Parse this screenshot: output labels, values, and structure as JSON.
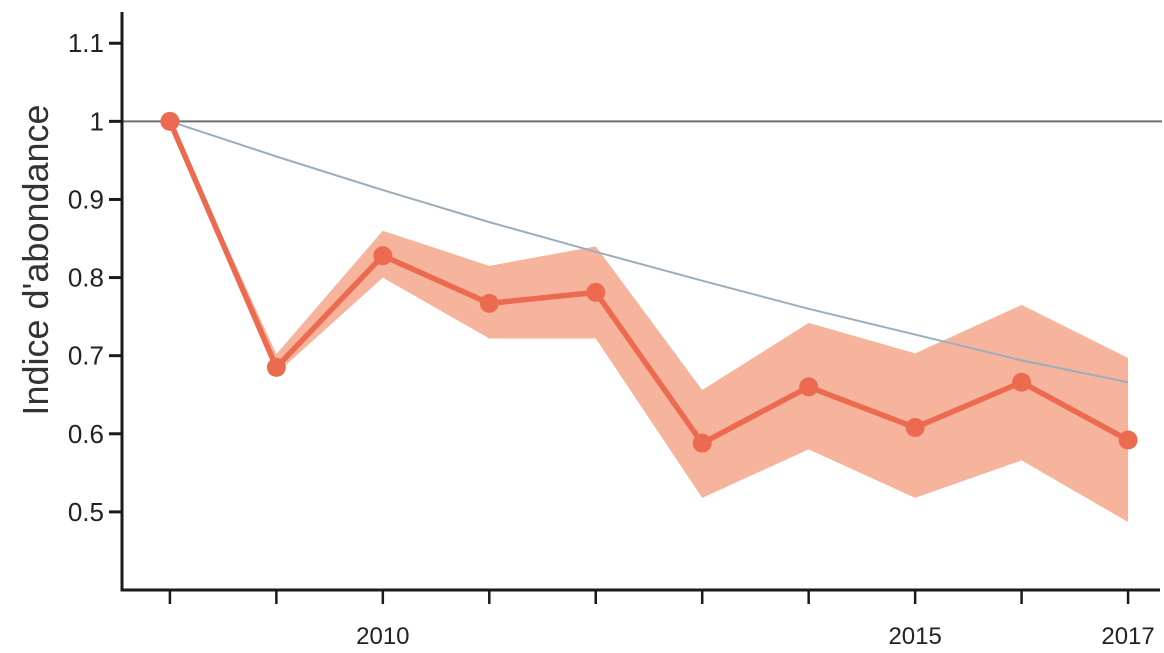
{
  "chart_data": {
    "type": "line",
    "title": "",
    "xlabel": "",
    "ylabel": "Indice d'abondance",
    "x": [
      2008,
      2009,
      2010,
      2011,
      2012,
      2013,
      2014,
      2015,
      2016,
      2017
    ],
    "xlim": [
      2007.55,
      2017.3
    ],
    "ylim": [
      0.4,
      1.14
    ],
    "y_ticks": [
      0.5,
      0.6,
      0.7,
      0.8,
      0.9,
      1.0,
      1.1
    ],
    "y_tick_labels": [
      "0.5",
      "0.6",
      "0.7",
      "0.8",
      "0.9",
      "1",
      "1.1"
    ],
    "x_tick_labels": [
      "",
      "",
      "2010",
      "",
      "",
      "",
      "",
      "2015",
      "",
      "2017"
    ],
    "grid": false,
    "reference_line": {
      "y": 1.0,
      "color": "#6e6e6e"
    },
    "series": [
      {
        "values": [
          1.0,
          0.685,
          0.828,
          0.767,
          0.781,
          0.588,
          0.66,
          0.608,
          0.666,
          0.592
        ],
        "lower": [
          1.0,
          0.677,
          0.8,
          0.722,
          0.722,
          0.518,
          0.58,
          0.518,
          0.566,
          0.487
        ],
        "upper": [
          1.0,
          0.702,
          0.86,
          0.815,
          0.84,
          0.656,
          0.742,
          0.703,
          0.765,
          0.697
        ],
        "color": "#ec6a50",
        "band_color": "#f6b49d"
      },
      {
        "x": [
          2008,
          2009,
          2010,
          2011,
          2012,
          2013,
          2014,
          2015,
          2016,
          2017
        ],
        "values": [
          1.0,
          0.955,
          0.912,
          0.871,
          0.833,
          0.796,
          0.76,
          0.727,
          0.694,
          0.666
        ],
        "color": "#9aaebb"
      }
    ]
  }
}
